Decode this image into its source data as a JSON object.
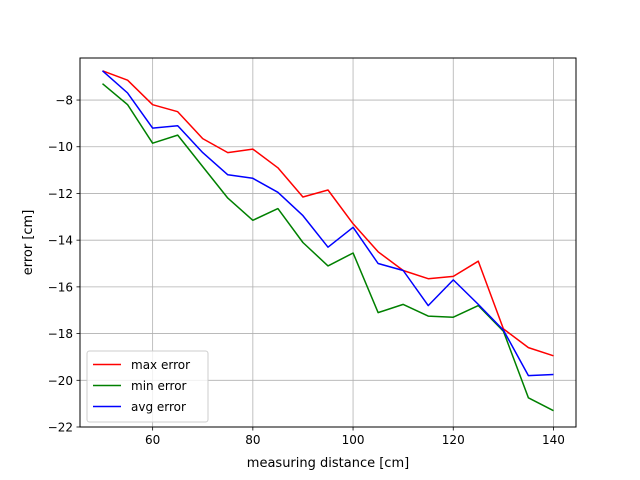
{
  "chart_data": {
    "type": "line",
    "xlabel": "measuring distance [cm]",
    "ylabel": "error [cm]",
    "xlim": [
      45.5,
      144.5
    ],
    "ylim": [
      -22,
      -6.2
    ],
    "x_ticks": [
      60,
      80,
      100,
      120,
      140
    ],
    "y_ticks": [
      -22,
      -20,
      -18,
      -16,
      -14,
      -12,
      -10,
      -8
    ],
    "grid": true,
    "legend_position": "lower-left",
    "x": [
      50,
      55,
      60,
      65,
      70,
      75,
      80,
      85,
      90,
      95,
      100,
      105,
      110,
      115,
      120,
      125,
      130,
      135,
      140
    ],
    "series": [
      {
        "name": "max error",
        "color": "#ff0000",
        "values": [
          -6.75,
          -7.15,
          -8.2,
          -8.5,
          -9.65,
          -10.25,
          -10.1,
          -10.9,
          -12.15,
          -11.85,
          -13.3,
          -14.5,
          -15.3,
          -15.65,
          -15.55,
          -14.9,
          -17.8,
          -18.6,
          -18.95
        ]
      },
      {
        "name": "min error",
        "color": "#008000",
        "values": [
          -7.3,
          -8.2,
          -9.85,
          -9.5,
          -10.85,
          -12.2,
          -13.15,
          -12.65,
          -14.1,
          -15.1,
          -14.55,
          -17.1,
          -16.75,
          -17.25,
          -17.3,
          -16.8,
          -17.9,
          -20.75,
          -21.3
        ]
      },
      {
        "name": "avg error",
        "color": "#0000ff",
        "values": [
          -6.75,
          -7.7,
          -9.2,
          -9.1,
          -10.25,
          -11.2,
          -11.35,
          -11.95,
          -12.95,
          -14.3,
          -13.45,
          -15.0,
          -15.3,
          -16.8,
          -15.7,
          -16.75,
          -17.85,
          -19.8,
          -19.75
        ]
      }
    ]
  }
}
